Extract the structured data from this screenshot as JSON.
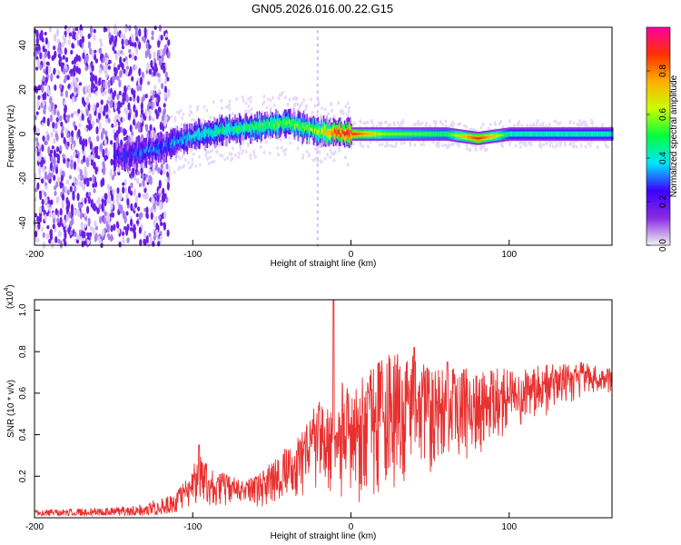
{
  "title": "GN05.2026.016.00.22.G15",
  "chart_data": [
    {
      "type": "heatmap",
      "xlabel": "Height of straight line (km)",
      "ylabel": "Frequency (Hz)",
      "xlim": [
        -200,
        165
      ],
      "ylim": [
        -50,
        48
      ],
      "xticks": [
        -200,
        -100,
        0,
        100
      ],
      "yticks": [
        -40,
        -20,
        0,
        20,
        40
      ],
      "colorbar": {
        "label": "Normalized spectral amplitude",
        "range": [
          0,
          1
        ],
        "ticks": [
          "0.0",
          "0.2",
          "0.4",
          "0.6",
          "0.8"
        ],
        "colors": [
          "#f2f2f2",
          "#8a2be2",
          "#3c00ff",
          "#00e5ff",
          "#00ff40",
          "#c8ff00",
          "#ffb000",
          "#ff3000",
          "#ff00a0"
        ]
      },
      "ridge": {
        "x": [
          -145,
          -120,
          -100,
          -80,
          -60,
          -40,
          -30,
          -20,
          -10,
          0,
          20,
          60,
          80,
          90,
          100,
          165
        ],
        "center_hz": [
          -10,
          -6,
          -1,
          2,
          3,
          5,
          3,
          1,
          0.5,
          0,
          0,
          0,
          -2,
          -1,
          0,
          0
        ],
        "amplitude": [
          0.25,
          0.3,
          0.4,
          0.45,
          0.5,
          0.55,
          0.55,
          0.6,
          0.85,
          0.9,
          0.6,
          0.5,
          0.9,
          0.7,
          0.45,
          0.45
        ]
      },
      "noise_region_x": [
        -200,
        -115
      ]
    },
    {
      "type": "line",
      "xlabel": "Height of straight line (km)",
      "ylabel": "SNR (10 * v/v)",
      "multiplier_label": "(x10",
      "multiplier_exp": "4",
      "xlim": [
        -200,
        165
      ],
      "ylim": [
        0,
        1.05
      ],
      "xticks": [
        -200,
        -100,
        0,
        100
      ],
      "yticks": [
        0.2,
        0.4,
        0.6,
        0.8,
        1.0
      ],
      "color": "#e83030",
      "envelope": {
        "x": [
          -200,
          -150,
          -130,
          -110,
          -100,
          -95,
          -90,
          -80,
          -70,
          -60,
          -50,
          -40,
          -30,
          -20,
          -10,
          -5,
          0,
          10,
          20,
          30,
          40,
          50,
          60,
          80,
          100,
          120,
          140,
          165
        ],
        "y_max": [
          0.04,
          0.05,
          0.07,
          0.12,
          0.25,
          0.32,
          0.25,
          0.22,
          0.18,
          0.2,
          0.27,
          0.35,
          0.42,
          0.6,
          0.5,
          0.68,
          0.62,
          0.72,
          0.78,
          0.8,
          0.78,
          0.72,
          0.72,
          0.72,
          0.72,
          0.74,
          0.76,
          0.72
        ],
        "y_min": [
          0.01,
          0.01,
          0.01,
          0.02,
          0.05,
          0.06,
          0.05,
          0.04,
          0.05,
          0.05,
          0.05,
          0.06,
          0.07,
          0.07,
          0.06,
          0.05,
          0.06,
          0.06,
          0.08,
          0.1,
          0.15,
          0.2,
          0.25,
          0.3,
          0.4,
          0.48,
          0.55,
          0.6
        ]
      },
      "spikes": [
        {
          "x": -11,
          "y": 1.05
        },
        {
          "x": -96,
          "y": 0.35
        },
        {
          "x": 40,
          "y": 0.82
        },
        {
          "x": 61,
          "y": 0.75
        }
      ]
    }
  ]
}
